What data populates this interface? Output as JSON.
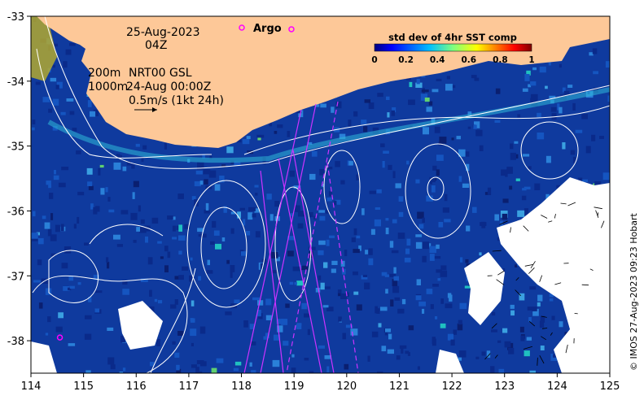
{
  "map": {
    "date": "25-Aug-2023",
    "time": "04Z",
    "depth_shallow": "200m",
    "depth_deep": "1000m",
    "altimetry_label": "NRT00 GSL",
    "altimetry_time": "24-Aug 00:00Z",
    "velocity_scale": "0.5m/s (1kt 24h)",
    "legend_argo": "Argo",
    "credit": "© IMOS 27-Aug-2023 09:23 Hobart",
    "lon_range": [
      114,
      125
    ],
    "lat_range": [
      -38.5,
      -33
    ],
    "lon_ticks": [
      "114",
      "115",
      "116",
      "117",
      "118",
      "119",
      "120",
      "121",
      "122",
      "123",
      "124",
      "125"
    ],
    "lat_ticks": [
      "-33",
      "-34",
      "-35",
      "-36",
      "-37",
      "-38"
    ],
    "argo_float_positions": [
      [
        118.95,
        -33.2
      ],
      [
        114.55,
        -37.95
      ]
    ],
    "colorbar": {
      "title": "std dev of 4hr SST comp",
      "range": [
        0,
        1
      ],
      "ticks": [
        "0",
        "0.2",
        "0.4",
        "0.6",
        "0.8",
        "1"
      ],
      "colors": [
        "#00007f",
        "#0000ff",
        "#007fff",
        "#00ffff",
        "#7fff7f",
        "#ffff00",
        "#ff7f00",
        "#ff0000",
        "#7f0000"
      ]
    },
    "colors": {
      "land": "#fdc898",
      "ocean_background": "#0f3a9e",
      "contour": "#ffffff",
      "argo": "#ff00ff",
      "track": "#cc33ff"
    }
  }
}
